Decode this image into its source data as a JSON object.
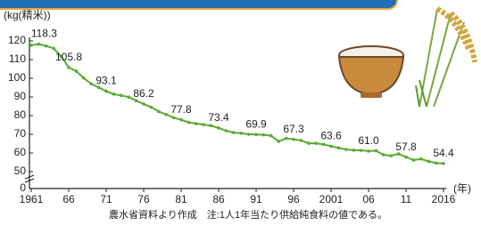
{
  "chart_data": {
    "type": "line",
    "ylabel": "(kg(精米))",
    "xlabel": "(年)",
    "note": "農水省資料より作成　注:1人1年当たり供給純食料の値である。",
    "x": [
      1961,
      1962,
      1963,
      1964,
      1965,
      1966,
      1967,
      1968,
      1969,
      1970,
      1971,
      1972,
      1973,
      1974,
      1975,
      1976,
      1977,
      1978,
      1979,
      1980,
      1981,
      1982,
      1983,
      1984,
      1985,
      1986,
      1987,
      1988,
      1989,
      1990,
      1991,
      1992,
      1993,
      1994,
      1995,
      1996,
      1997,
      1998,
      1999,
      2000,
      2001,
      2002,
      2003,
      2004,
      2005,
      2006,
      2007,
      2008,
      2009,
      2010,
      2011,
      2012,
      2013,
      2014,
      2015,
      2016
    ],
    "series": [
      {
        "color": "#5aab32",
        "values": [
          117.7,
          118.3,
          117.3,
          116.0,
          111.7,
          105.8,
          103.8,
          100.1,
          97.0,
          95.1,
          93.1,
          91.5,
          90.8,
          89.9,
          88.0,
          86.2,
          84.5,
          82.2,
          80.6,
          78.9,
          77.8,
          76.4,
          75.7,
          75.2,
          74.6,
          73.4,
          71.9,
          70.9,
          70.6,
          70.0,
          69.9,
          69.7,
          69.2,
          66.2,
          67.8,
          67.3,
          66.7,
          65.2,
          65.2,
          64.6,
          63.6,
          62.7,
          61.9,
          61.5,
          61.4,
          61.0,
          61.2,
          59.0,
          58.5,
          59.5,
          57.8,
          56.2,
          56.8,
          55.5,
          54.6,
          54.4
        ],
        "value_labels": [
          null,
          "118.3",
          null,
          null,
          null,
          "105.8",
          null,
          null,
          null,
          null,
          "93.1",
          null,
          null,
          null,
          null,
          "86.2",
          null,
          null,
          null,
          null,
          "77.8",
          null,
          null,
          null,
          null,
          "73.4",
          null,
          null,
          null,
          null,
          "69.9",
          null,
          null,
          null,
          null,
          "67.3",
          null,
          null,
          null,
          null,
          "63.6",
          null,
          null,
          null,
          null,
          "61.0",
          null,
          null,
          null,
          null,
          "57.8",
          null,
          null,
          null,
          null,
          "54.4"
        ]
      }
    ],
    "xlim": [
      1961,
      2016
    ],
    "xticks": [
      1961,
      {
        "value": 1966,
        "label": "66"
      },
      {
        "value": 1971,
        "label": "71"
      },
      {
        "value": 1976,
        "label": "76"
      },
      {
        "value": 1981,
        "label": "81"
      },
      {
        "value": 1986,
        "label": "86"
      },
      {
        "value": 1991,
        "label": "91"
      },
      {
        "value": 1996,
        "label": "96"
      },
      2001,
      {
        "value": 2006,
        "label": "06"
      },
      {
        "value": 2011,
        "label": "11"
      },
      2016
    ],
    "ylim": [
      0,
      120
    ],
    "axis_break": [
      0,
      50
    ],
    "yticks": [
      0,
      50,
      60,
      70,
      80,
      90,
      100,
      110,
      120
    ]
  }
}
